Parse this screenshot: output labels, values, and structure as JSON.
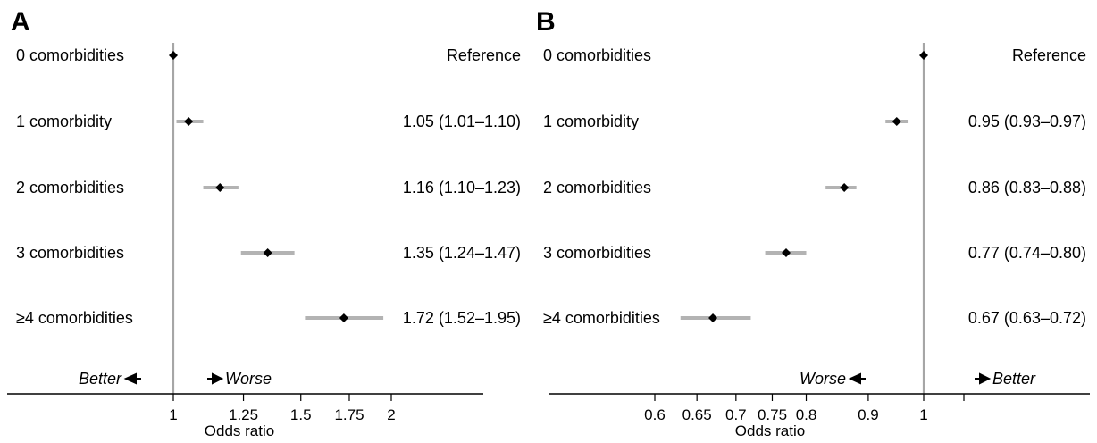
{
  "chart_data": [
    {
      "type": "forest",
      "panel": "A",
      "xlabel": "Odds ratio",
      "x_scale": "log",
      "xticks": [
        1,
        1.25,
        1.5,
        1.75,
        2
      ],
      "xtick_labels": [
        "1",
        "1.25",
        "1.5",
        "1.75",
        "2"
      ],
      "reference_value": 1,
      "directions": {
        "left": "Better",
        "right": "Worse"
      },
      "rows": [
        {
          "label": "0 comorbidities",
          "or": 1.0,
          "lo": null,
          "hi": null,
          "text": "Reference"
        },
        {
          "label": "1 comorbidity",
          "or": 1.05,
          "lo": 1.01,
          "hi": 1.1,
          "text": "1.05 (1.01–1.10)"
        },
        {
          "label": "2 comorbidities",
          "or": 1.16,
          "lo": 1.1,
          "hi": 1.23,
          "text": "1.16 (1.10–1.23)"
        },
        {
          "label": "3 comorbidities",
          "or": 1.35,
          "lo": 1.24,
          "hi": 1.47,
          "text": "1.35 (1.24–1.47)"
        },
        {
          "label": "≥4 comorbidities",
          "or": 1.72,
          "lo": 1.52,
          "hi": 1.95,
          "text": "1.72 (1.52–1.95)"
        }
      ]
    },
    {
      "type": "forest",
      "panel": "B",
      "xlabel": "Odds ratio",
      "x_scale": "log",
      "xticks": [
        0.6,
        0.65,
        0.7,
        0.75,
        0.8,
        0.9,
        1
      ],
      "xtick_labels": [
        "0.6",
        "0.65",
        "0.7",
        "0.75",
        "0.8",
        "0.9",
        "1"
      ],
      "reference_value": 1,
      "directions": {
        "left": "Worse",
        "right": "Better"
      },
      "rows": [
        {
          "label": "0 comorbidities",
          "or": 1.0,
          "lo": null,
          "hi": null,
          "text": "Reference"
        },
        {
          "label": "1 comorbidity",
          "or": 0.95,
          "lo": 0.93,
          "hi": 0.97,
          "text": "0.95 (0.93–0.97)"
        },
        {
          "label": "2 comorbidities",
          "or": 0.86,
          "lo": 0.83,
          "hi": 0.88,
          "text": "0.86 (0.83–0.88)"
        },
        {
          "label": "3 comorbidities",
          "or": 0.77,
          "lo": 0.74,
          "hi": 0.8,
          "text": "0.77 (0.74–0.80)"
        },
        {
          "label": "≥4 comorbidities",
          "or": 0.67,
          "lo": 0.63,
          "hi": 0.72,
          "text": "0.67 (0.63–0.72)"
        }
      ]
    }
  ],
  "colors": {
    "ci": "#b3b3b3",
    "point": "#000000",
    "reference_line": "#a6a6a6",
    "axis": "#000000"
  }
}
